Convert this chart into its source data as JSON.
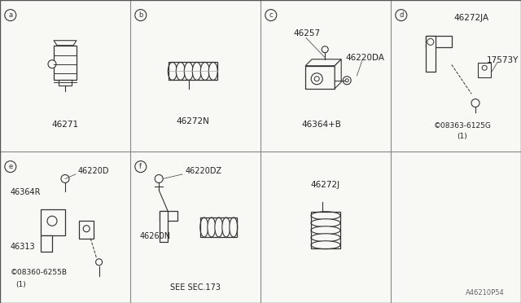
{
  "bg": "#f8f8f4",
  "fg": "#222222",
  "line_color": "#333333",
  "grid_color": "#888888",
  "watermark": "A46210P54",
  "font": "DejaVu Sans",
  "cells": {
    "a": {
      "col": 0,
      "row": 0,
      "label": "a",
      "part": "46271"
    },
    "b": {
      "col": 1,
      "row": 0,
      "label": "b",
      "part": "46272N"
    },
    "c": {
      "col": 2,
      "row": 0,
      "label": "c",
      "parts": [
        "46257",
        "46220DA",
        "46364+B"
      ]
    },
    "d": {
      "col": 3,
      "row": 0,
      "label": "d",
      "parts": [
        "46272JA",
        "17573Y",
        "©08363-6125G",
        "(1)"
      ]
    },
    "e": {
      "col": 0,
      "row": 1,
      "label": "e",
      "parts": [
        "46220D",
        "46364R",
        "46313",
        "©08360-6255B",
        "(1)"
      ]
    },
    "f": {
      "col": 1,
      "row": 1,
      "label": "f",
      "parts": [
        "46220DZ",
        "46260N",
        "SEE SEC.173"
      ]
    },
    "g": {
      "col": 2,
      "row": 1,
      "label": "",
      "part": "46272J"
    },
    "h": {
      "col": 3,
      "row": 1,
      "label": "",
      "parts": []
    }
  }
}
